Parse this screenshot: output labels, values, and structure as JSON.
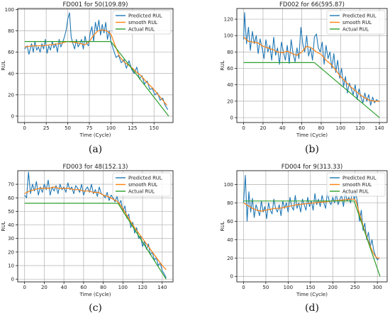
{
  "chart_data": [
    {
      "type": "line",
      "title": "FD001 for 50(109.89)",
      "caption": "(a)",
      "xlabel": "Time (Cycle)",
      "ylabel": "RUL",
      "xlim": [
        -8,
        172
      ],
      "ylim": [
        -6,
        101
      ],
      "xticks": [
        0,
        25,
        50,
        75,
        100,
        125,
        150
      ],
      "yticks": [
        0,
        20,
        40,
        60,
        80,
        100
      ],
      "grid": true,
      "legend": "top-right",
      "series": [
        {
          "name": "Predicted RUL",
          "color": "#1f77b4",
          "x": [
            0,
            3,
            5,
            8,
            10,
            12,
            14,
            16,
            18,
            20,
            22,
            24,
            26,
            28,
            30,
            32,
            34,
            36,
            38,
            40,
            42,
            44,
            46,
            48,
            50,
            52,
            54,
            56,
            58,
            60,
            62,
            64,
            66,
            68,
            70,
            72,
            74,
            76,
            78,
            80,
            82,
            84,
            86,
            88,
            90,
            92,
            94,
            96,
            98,
            100,
            103,
            106,
            109,
            112,
            115,
            118,
            121,
            124,
            127,
            130,
            133,
            136,
            139,
            142,
            145,
            148,
            151,
            154,
            157,
            160,
            163,
            166
          ],
          "y": [
            63,
            66,
            58,
            68,
            60,
            70,
            62,
            65,
            60,
            68,
            63,
            72,
            59,
            66,
            62,
            70,
            64,
            68,
            60,
            72,
            65,
            69,
            74,
            80,
            91,
            97,
            74,
            68,
            63,
            72,
            65,
            68,
            72,
            63,
            75,
            68,
            66,
            78,
            84,
            70,
            88,
            80,
            90,
            76,
            86,
            78,
            88,
            72,
            80,
            70,
            62,
            55,
            57,
            50,
            53,
            45,
            52,
            44,
            40,
            46,
            35,
            38,
            30,
            33,
            25,
            26,
            20,
            22,
            15,
            17,
            10,
            6
          ]
        },
        {
          "name": "smooth RUL",
          "color": "#ff7f0e",
          "x": [
            0,
            10,
            20,
            30,
            40,
            50,
            60,
            70,
            75,
            80,
            85,
            90,
            95,
            100,
            105,
            110,
            115,
            120,
            125,
            130,
            135,
            140,
            145,
            150,
            155,
            160,
            165
          ],
          "y": [
            65,
            66,
            66,
            67,
            68,
            70,
            69,
            67,
            70,
            76,
            80,
            81,
            80,
            77,
            66,
            56,
            51,
            48,
            45,
            41,
            38,
            33,
            29,
            25,
            20,
            15,
            10
          ]
        },
        {
          "name": "Actual RUL",
          "color": "#2ca02c",
          "x": [
            0,
            100,
            167
          ],
          "y": [
            70,
            70,
            0
          ]
        }
      ]
    },
    {
      "type": "line",
      "title": "FD002 for 66(595.87)",
      "caption": "(b)",
      "xlabel": "Time (Cycle)",
      "ylabel": "RUL",
      "xlim": [
        -7,
        148
      ],
      "ylim": [
        -6,
        133
      ],
      "xticks": [
        0,
        20,
        40,
        60,
        80,
        100,
        120,
        140
      ],
      "yticks": [
        0,
        20,
        40,
        60,
        80,
        100,
        120
      ],
      "grid": true,
      "legend": "top-right",
      "series": [
        {
          "name": "Predicted RUL",
          "color": "#1f77b4",
          "x": [
            0,
            1,
            3,
            5,
            7,
            9,
            11,
            13,
            15,
            17,
            19,
            21,
            23,
            25,
            27,
            29,
            31,
            33,
            35,
            37,
            39,
            41,
            43,
            45,
            47,
            49,
            51,
            53,
            55,
            57,
            59,
            61,
            63,
            65,
            67,
            69,
            71,
            73,
            75,
            77,
            79,
            81,
            83,
            85,
            87,
            89,
            91,
            93,
            95,
            97,
            99,
            101,
            103,
            105,
            107,
            109,
            111,
            113,
            115,
            117,
            119,
            121,
            123,
            125,
            127,
            129,
            131,
            133,
            135,
            137,
            139,
            140
          ],
          "y": [
            95,
            128,
            90,
            110,
            82,
            105,
            90,
            100,
            78,
            96,
            85,
            72,
            95,
            80,
            88,
            70,
            98,
            76,
            85,
            65,
            92,
            80,
            70,
            88,
            66,
            95,
            78,
            68,
            85,
            72,
            110,
            90,
            80,
            100,
            75,
            85,
            70,
            98,
            102,
            85,
            80,
            92,
            65,
            88,
            72,
            80,
            60,
            78,
            55,
            70,
            48,
            60,
            38,
            50,
            30,
            42,
            35,
            28,
            40,
            22,
            35,
            25,
            18,
            30,
            20,
            28,
            15,
            25,
            18,
            22,
            20,
            19
          ]
        },
        {
          "name": "smooth RUL",
          "color": "#ff7f0e",
          "x": [
            0,
            5,
            10,
            15,
            20,
            25,
            30,
            35,
            40,
            45,
            50,
            55,
            60,
            65,
            70,
            75,
            80,
            85,
            90,
            95,
            100,
            105,
            110,
            115,
            120,
            125,
            130,
            135,
            140
          ],
          "y": [
            98,
            93,
            92,
            91,
            87,
            85,
            83,
            80,
            79,
            81,
            78,
            76,
            80,
            87,
            85,
            80,
            77,
            70,
            65,
            58,
            50,
            44,
            38,
            33,
            28,
            24,
            21,
            20,
            20
          ]
        },
        {
          "name": "Actual RUL",
          "color": "#2ca02c",
          "x": [
            0,
            73,
            140
          ],
          "y": [
            67,
            67,
            0
          ]
        }
      ]
    },
    {
      "type": "line",
      "title": "FD003 for 48(152.13)",
      "caption": "(c)",
      "xlabel": "Time (Cycle)",
      "ylabel": "RUL",
      "xlim": [
        -7,
        151
      ],
      "ylim": [
        -2,
        80
      ],
      "xticks": [
        0,
        20,
        40,
        60,
        80,
        100,
        120,
        140
      ],
      "yticks": [
        0,
        10,
        20,
        30,
        40,
        50,
        60,
        70
      ],
      "grid": true,
      "legend": "top-right",
      "series": [
        {
          "name": "Predicted RUL",
          "color": "#1f77b4",
          "x": [
            0,
            2,
            4,
            6,
            8,
            10,
            12,
            14,
            16,
            18,
            20,
            22,
            24,
            26,
            28,
            30,
            32,
            34,
            36,
            38,
            40,
            42,
            44,
            46,
            48,
            50,
            52,
            54,
            56,
            58,
            60,
            62,
            64,
            66,
            68,
            70,
            72,
            74,
            76,
            78,
            80,
            82,
            84,
            86,
            88,
            90,
            92,
            94,
            96,
            98,
            100,
            102,
            104,
            106,
            108,
            110,
            112,
            114,
            116,
            118,
            120,
            122,
            124,
            126,
            128,
            130,
            132,
            134,
            136,
            138,
            140,
            142,
            144
          ],
          "y": [
            62,
            60,
            79,
            63,
            70,
            65,
            72,
            62,
            68,
            64,
            70,
            66,
            73,
            62,
            68,
            65,
            69,
            63,
            70,
            66,
            68,
            64,
            71,
            66,
            68,
            63,
            69,
            67,
            64,
            70,
            62,
            66,
            68,
            64,
            70,
            63,
            66,
            61,
            68,
            63,
            62,
            60,
            64,
            58,
            62,
            60,
            57,
            61,
            55,
            58,
            50,
            54,
            45,
            48,
            38,
            42,
            34,
            38,
            30,
            32,
            24,
            28,
            22,
            26,
            18,
            20,
            14,
            16,
            10,
            12,
            6,
            4,
            1
          ]
        },
        {
          "name": "smooth RUL",
          "color": "#ff7f0e",
          "x": [
            0,
            5,
            10,
            15,
            20,
            25,
            30,
            35,
            40,
            45,
            50,
            55,
            60,
            65,
            70,
            75,
            80,
            85,
            90,
            95,
            100,
            105,
            110,
            115,
            120,
            125,
            130,
            135,
            140,
            144
          ],
          "y": [
            63,
            65,
            66,
            67,
            67,
            67,
            68,
            67,
            67,
            67,
            66,
            66,
            65,
            65,
            64,
            64,
            62,
            61,
            59,
            57,
            52,
            46,
            40,
            35,
            30,
            25,
            20,
            15,
            10,
            7
          ]
        },
        {
          "name": "Actual RUL",
          "color": "#2ca02c",
          "x": [
            0,
            95,
            144
          ],
          "y": [
            56,
            56,
            0
          ]
        }
      ]
    },
    {
      "type": "line",
      "title": "FD004 for 9(313.33)",
      "caption": "(d)",
      "xlabel": "Time (Cycle)",
      "ylabel": "RUL",
      "xlim": [
        -15,
        322
      ],
      "ylim": [
        -6,
        115
      ],
      "xticks": [
        0,
        50,
        100,
        150,
        200,
        250,
        300
      ],
      "yticks": [
        0,
        20,
        40,
        60,
        80,
        100
      ],
      "grid": true,
      "legend": "top-right",
      "series": [
        {
          "name": "Predicted RUL",
          "color": "#1f77b4",
          "x": [
            0,
            4,
            8,
            12,
            16,
            20,
            24,
            28,
            32,
            36,
            40,
            44,
            48,
            52,
            56,
            60,
            64,
            68,
            72,
            76,
            80,
            84,
            88,
            92,
            96,
            100,
            104,
            108,
            112,
            116,
            120,
            124,
            128,
            132,
            136,
            140,
            144,
            148,
            152,
            156,
            160,
            164,
            168,
            172,
            176,
            180,
            184,
            188,
            192,
            196,
            200,
            204,
            208,
            212,
            216,
            220,
            224,
            228,
            232,
            236,
            240,
            244,
            248,
            252,
            256,
            260,
            264,
            268,
            272,
            276,
            280,
            284,
            288,
            292,
            296,
            300,
            304
          ],
          "y": [
            80,
            110,
            60,
            92,
            70,
            85,
            64,
            78,
            72,
            66,
            82,
            70,
            76,
            63,
            80,
            72,
            68,
            84,
            74,
            70,
            78,
            66,
            82,
            74,
            80,
            70,
            86,
            76,
            72,
            88,
            74,
            80,
            70,
            84,
            78,
            72,
            86,
            76,
            82,
            72,
            90,
            78,
            84,
            76,
            88,
            80,
            74,
            92,
            82,
            78,
            86,
            80,
            90,
            78,
            84,
            88,
            76,
            92,
            82,
            86,
            80,
            94,
            84,
            90,
            78,
            60,
            72,
            50,
            58,
            40,
            48,
            32,
            40,
            28,
            22,
            18,
            20
          ]
        },
        {
          "name": "smooth RUL",
          "color": "#ff7f0e",
          "x": [
            0,
            10,
            20,
            30,
            40,
            50,
            60,
            70,
            80,
            90,
            100,
            120,
            140,
            160,
            180,
            200,
            220,
            240,
            248,
            252,
            256,
            260,
            265,
            270,
            275,
            280,
            285,
            290,
            295,
            300,
            305
          ],
          "y": [
            80,
            77,
            74,
            72,
            71,
            72,
            73,
            74,
            74,
            75,
            76,
            78,
            79,
            80,
            81,
            82,
            83,
            84,
            84,
            82,
            75,
            68,
            60,
            52,
            45,
            38,
            32,
            26,
            22,
            20,
            20
          ]
        },
        {
          "name": "Actual RUL",
          "color": "#2ca02c",
          "x": [
            0,
            248,
            306
          ],
          "y": [
            82,
            82,
            0
          ]
        }
      ]
    }
  ]
}
